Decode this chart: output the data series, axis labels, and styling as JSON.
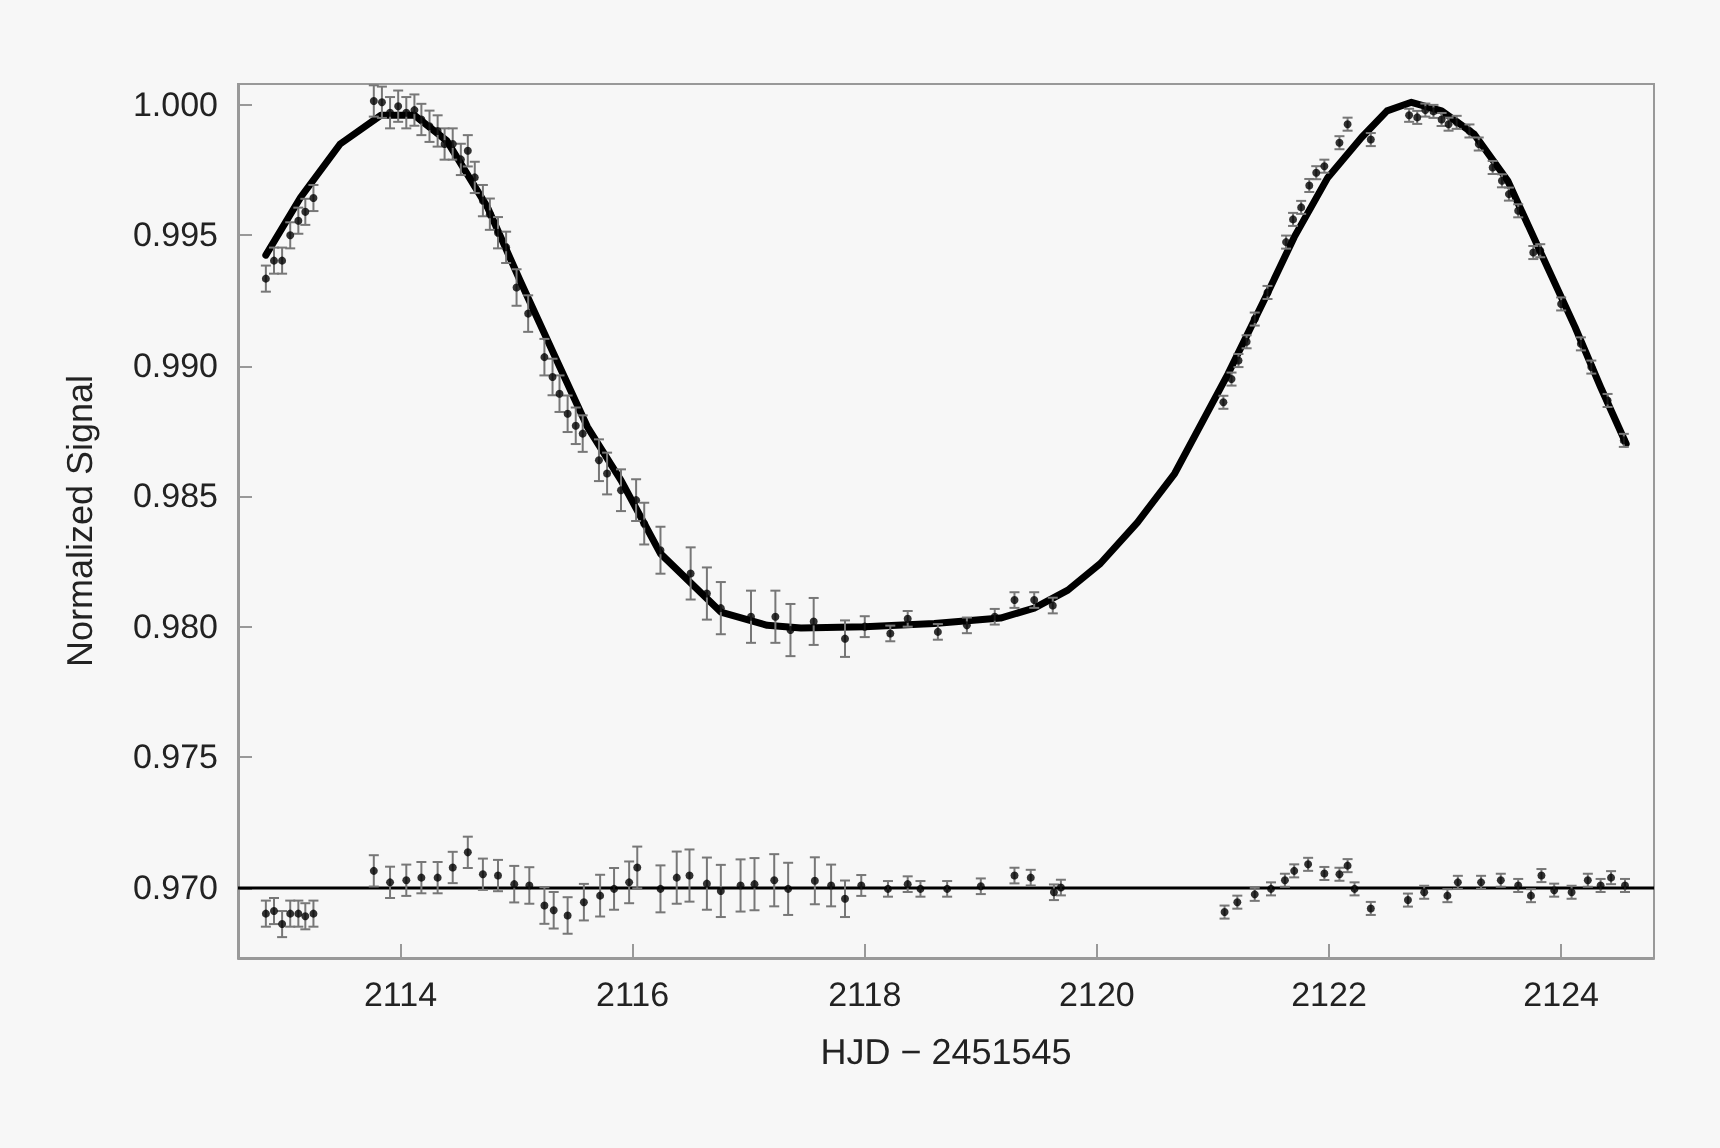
{
  "chart_data": {
    "type": "scatter",
    "xlabel": "HJD − 2451545",
    "ylabel": "Normalized Signal",
    "marker": "circle",
    "grid": false,
    "xlim": [
      2112.6,
      2124.8
    ],
    "ylim": [
      0.9673,
      1.0008
    ],
    "xticks": [
      2114,
      2116,
      2118,
      2120,
      2122,
      2124
    ],
    "yticks": [
      {
        "value": 0.97,
        "label": "0.970"
      },
      {
        "value": 0.975,
        "label": "0.975"
      },
      {
        "value": 0.98,
        "label": "0.980"
      },
      {
        "value": 0.985,
        "label": "0.985"
      },
      {
        "value": 0.99,
        "label": "0.990"
      },
      {
        "value": 0.995,
        "label": "0.995"
      },
      {
        "value": 1.0,
        "label": "1.000"
      }
    ],
    "ref_lines": [
      {
        "axis": "y",
        "value": 0.97,
        "label": null,
        "color": "#000000"
      }
    ],
    "series": [
      {
        "color": "#000000",
        "x": [
          2112.84,
          2112.91,
          2112.98,
          2113.05,
          2113.12,
          2113.18,
          2113.25,
          2113.77,
          2113.84,
          2113.91,
          2113.98,
          2114.05,
          2114.12,
          2114.18,
          2114.25,
          2114.32,
          2114.38,
          2114.45,
          2114.52,
          2114.58,
          2114.64,
          2114.71,
          2114.77,
          2114.84,
          2114.91,
          2115.0,
          2115.1,
          2115.24,
          2115.31,
          2115.37,
          2115.44,
          2115.51,
          2115.57,
          2115.71,
          2115.78,
          2115.9,
          2116.03,
          2116.1,
          2116.24,
          2116.5,
          2116.64,
          2116.76,
          2117.02,
          2117.23,
          2117.36,
          2117.56,
          2117.83,
          2118.0,
          2118.22,
          2118.37,
          2118.63,
          2118.88,
          2119.12,
          2119.29,
          2119.46,
          2119.62,
          2121.09,
          2121.16,
          2121.22,
          2121.29,
          2121.36,
          2121.47,
          2121.63,
          2121.69,
          2121.76,
          2121.83,
          2121.89,
          2121.96,
          2122.09,
          2122.16,
          2122.36,
          2122.69,
          2122.76,
          2122.83,
          2122.9,
          2122.97,
          2123.03,
          2123.1,
          2123.21,
          2123.29,
          2123.41,
          2123.49,
          2123.55,
          2123.63,
          2123.76,
          2123.82,
          2124.0,
          2124.17,
          2124.26,
          2124.4,
          2124.54
        ],
        "values": [
          0.99334,
          0.99403,
          0.99403,
          0.995,
          0.99556,
          0.9959,
          0.99643,
          1.00015,
          1.0001,
          0.9997,
          0.99995,
          0.9997,
          0.9998,
          0.99944,
          0.99918,
          0.999,
          0.9985,
          0.9985,
          0.99791,
          0.99824,
          0.99722,
          0.99633,
          0.99581,
          0.9951,
          0.99454,
          0.993,
          0.992,
          0.99033,
          0.98957,
          0.98893,
          0.98816,
          0.9877,
          0.9874,
          0.98638,
          0.98587,
          0.98523,
          0.98485,
          0.98395,
          0.98293,
          0.98204,
          0.98127,
          0.98071,
          0.98038,
          0.98038,
          0.97987,
          0.9802,
          0.97954,
          0.98,
          0.97974,
          0.9803,
          0.9798,
          0.98005,
          0.98038,
          0.98102,
          0.98102,
          0.98081,
          0.9886,
          0.98949,
          0.9902,
          0.99092,
          0.99179,
          0.99281,
          0.99474,
          0.99561,
          0.99607,
          0.99691,
          0.9974,
          0.99765,
          0.99855,
          0.99926,
          0.99867,
          0.9996,
          0.99952,
          0.9998,
          0.99975,
          0.99944,
          0.99926,
          0.99933,
          0.999,
          0.9985,
          0.9976,
          0.99709,
          0.99658,
          0.99594,
          0.99434,
          0.99441,
          0.99237,
          0.99084,
          0.98995,
          0.98867,
          0.98714
        ],
        "errors": [
          0.0005,
          0.0005,
          0.0005,
          0.0005,
          0.0005,
          0.0005,
          0.0005,
          0.0006,
          0.0006,
          0.0006,
          0.0006,
          0.0006,
          0.0006,
          0.0006,
          0.0006,
          0.0006,
          0.0006,
          0.0006,
          0.0006,
          0.0006,
          0.0006,
          0.0006,
          0.0006,
          0.0006,
          0.0006,
          0.0007,
          0.0007,
          0.0007,
          0.0007,
          0.0007,
          0.0007,
          0.0007,
          0.0007,
          0.0008,
          0.0008,
          0.0008,
          0.0008,
          0.0008,
          0.0009,
          0.001,
          0.001,
          0.001,
          0.001,
          0.001,
          0.001,
          0.0009,
          0.0007,
          0.0004,
          0.0003,
          0.0003,
          0.0003,
          0.0003,
          0.0003,
          0.0003,
          0.0003,
          0.0003,
          0.00025,
          0.00025,
          0.00025,
          0.00025,
          0.00025,
          0.00025,
          0.00025,
          0.00025,
          0.00025,
          0.00025,
          0.00025,
          0.00025,
          0.00025,
          0.00025,
          0.00025,
          0.00025,
          0.00025,
          0.00025,
          0.00025,
          0.00025,
          0.00025,
          0.00025,
          0.00025,
          0.00025,
          0.00025,
          0.00025,
          0.00025,
          0.00025,
          0.00025,
          0.00025,
          0.00025,
          0.00025,
          0.00025,
          0.00025,
          0.00025
        ]
      },
      {
        "type": "line",
        "color": "#000000",
        "line_style": "solid",
        "marker": "none",
        "x": [
          2112.84,
          2113.14,
          2113.48,
          2113.83,
          2114.12,
          2114.4,
          2114.75,
          2115.03,
          2115.32,
          2115.61,
          2115.9,
          2116.24,
          2116.76,
          2117.16,
          2117.45,
          2118.0,
          2118.6,
          2119.17,
          2119.46,
          2119.75,
          2120.03,
          2120.35,
          2120.67,
          2121.13,
          2121.47,
          2121.7,
          2121.99,
          2122.28,
          2122.5,
          2122.71,
          2122.97,
          2123.25,
          2123.54,
          2123.83,
          2124.12,
          2124.34,
          2124.56
        ],
        "values": [
          0.99424,
          0.99646,
          0.9985,
          0.9996,
          0.9996,
          0.99862,
          0.99607,
          0.99327,
          0.99046,
          0.98766,
          0.98561,
          0.9828,
          0.98056,
          0.98005,
          0.97995,
          0.98,
          0.98012,
          0.98033,
          0.98071,
          0.9814,
          0.98242,
          0.984,
          0.98587,
          0.98969,
          0.99278,
          0.99493,
          0.99722,
          0.99875,
          0.99977,
          1.0001,
          0.99977,
          0.99888,
          0.99709,
          0.99428,
          0.99148,
          0.98918,
          0.98701
        ]
      },
      {
        "color": "#000000",
        "x": [
          2112.84,
          2112.91,
          2112.98,
          2113.05,
          2113.12,
          2113.18,
          2113.25,
          2113.77,
          2113.91,
          2114.05,
          2114.18,
          2114.32,
          2114.45,
          2114.58,
          2114.71,
          2114.84,
          2114.98,
          2115.11,
          2115.24,
          2115.32,
          2115.44,
          2115.58,
          2115.72,
          2115.84,
          2115.97,
          2116.04,
          2116.24,
          2116.38,
          2116.49,
          2116.64,
          2116.76,
          2116.93,
          2117.05,
          2117.22,
          2117.34,
          2117.57,
          2117.71,
          2117.83,
          2117.97,
          2118.2,
          2118.37,
          2118.48,
          2118.71,
          2119.0,
          2119.29,
          2119.43,
          2119.63,
          2119.69,
          2121.1,
          2121.21,
          2121.36,
          2121.5,
          2121.62,
          2121.7,
          2121.82,
          2121.96,
          2122.09,
          2122.16,
          2122.22,
          2122.36,
          2122.68,
          2122.82,
          2123.02,
          2123.11,
          2123.31,
          2123.48,
          2123.63,
          2123.74,
          2123.83,
          2123.94,
          2124.09,
          2124.23,
          2124.34,
          2124.43,
          2124.55
        ],
        "values": [
          0.969,
          0.9691,
          0.9686,
          0.969,
          0.969,
          0.9689,
          0.969,
          0.97064,
          0.9702,
          0.97028,
          0.97038,
          0.97038,
          0.97077,
          0.97135,
          0.97051,
          0.97046,
          0.97013,
          0.97008,
          0.96931,
          0.96913,
          0.96893,
          0.96944,
          0.96969,
          0.96995,
          0.9702,
          0.97077,
          0.96995,
          0.97038,
          0.97046,
          0.97015,
          0.96987,
          0.97008,
          0.97013,
          0.97028,
          0.96995,
          0.97026,
          0.97008,
          0.96957,
          0.97008,
          0.96995,
          0.97013,
          0.96995,
          0.96995,
          0.97005,
          0.97046,
          0.97038,
          0.96982,
          0.97,
          0.96906,
          0.96944,
          0.96974,
          0.96995,
          0.97028,
          0.97064,
          0.97089,
          0.97054,
          0.97051,
          0.97084,
          0.96995,
          0.9692,
          0.96952,
          0.96982,
          0.96969,
          0.9702,
          0.9702,
          0.97028,
          0.97008,
          0.96969,
          0.97046,
          0.9699,
          0.96982,
          0.97028,
          0.97008,
          0.97038,
          0.97008
        ],
        "errors": [
          0.0005,
          0.0005,
          0.0005,
          0.0005,
          0.0005,
          0.0005,
          0.0005,
          0.0006,
          0.0006,
          0.0006,
          0.0006,
          0.0006,
          0.0006,
          0.0006,
          0.0006,
          0.0006,
          0.0007,
          0.0007,
          0.0007,
          0.0007,
          0.0007,
          0.0007,
          0.0008,
          0.0008,
          0.0008,
          0.0008,
          0.0009,
          0.001,
          0.001,
          0.001,
          0.001,
          0.001,
          0.001,
          0.001,
          0.001,
          0.0009,
          0.0008,
          0.0007,
          0.0004,
          0.0003,
          0.0003,
          0.0003,
          0.0003,
          0.0003,
          0.0003,
          0.0003,
          0.0003,
          0.0003,
          0.00025,
          0.00025,
          0.00025,
          0.00025,
          0.00025,
          0.00025,
          0.00025,
          0.00025,
          0.00025,
          0.00025,
          0.00025,
          0.00025,
          0.00025,
          0.00025,
          0.00025,
          0.00025,
          0.00025,
          0.00025,
          0.00025,
          0.00025,
          0.00025,
          0.00025,
          0.00025,
          0.00025,
          0.00025,
          0.00025,
          0.00025
        ]
      }
    ]
  }
}
